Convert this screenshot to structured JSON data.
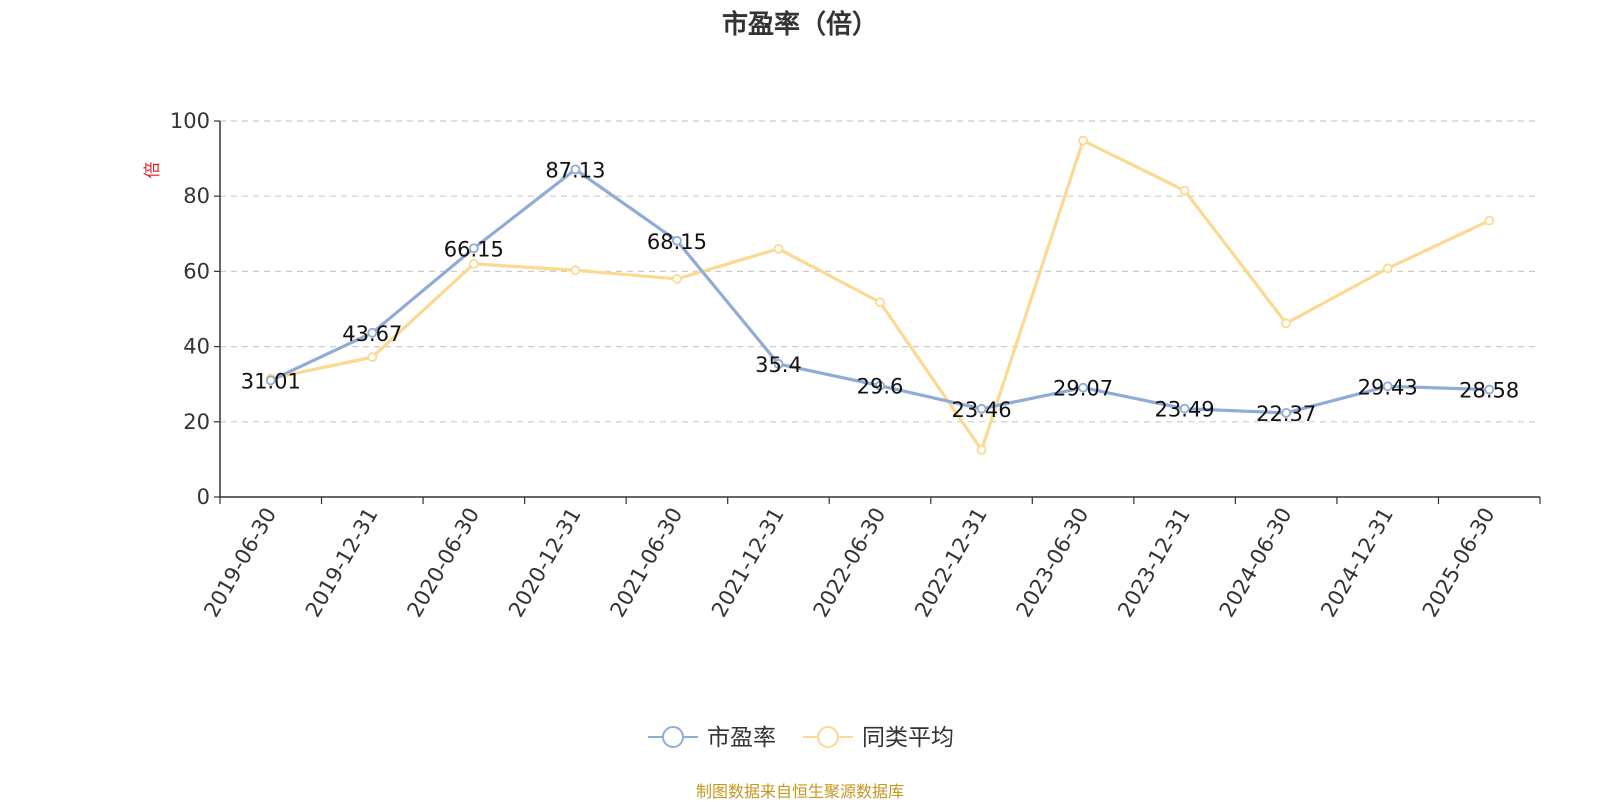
{
  "chart_data": {
    "type": "line",
    "title": "市盈率（倍）",
    "ylabel": "倍",
    "xlabel": "",
    "ylim": [
      0,
      100
    ],
    "yticks": [
      0,
      20,
      40,
      60,
      80,
      100
    ],
    "grid": true,
    "legend_position": "bottom-center",
    "categories": [
      "2019-06-30",
      "2019-12-31",
      "2020-06-30",
      "2020-12-31",
      "2021-06-30",
      "2021-12-31",
      "2022-06-30",
      "2022-12-31",
      "2023-06-30",
      "2023-12-31",
      "2024-06-30",
      "2024-12-31",
      "2025-06-30"
    ],
    "series": [
      {
        "name": "市盈率",
        "color": "#8eacd6",
        "show_labels": true,
        "values": [
          31.01,
          43.67,
          66.15,
          87.13,
          68.15,
          35.4,
          29.6,
          23.46,
          29.07,
          23.49,
          22.37,
          29.43,
          28.58
        ]
      },
      {
        "name": "同类平均",
        "color": "#fcd992",
        "show_labels": false,
        "values": [
          31.5,
          37.2,
          62.0,
          60.3,
          58.0,
          66.0,
          51.8,
          12.5,
          94.8,
          81.5,
          46.2,
          60.8,
          73.5
        ]
      }
    ]
  },
  "footer": {
    "source": "制图数据来自恒生聚源数据库"
  },
  "colors": {
    "axis": "#333333",
    "grid": "#cccccc",
    "ylabel": "#e02020",
    "source": "#c8961e"
  }
}
